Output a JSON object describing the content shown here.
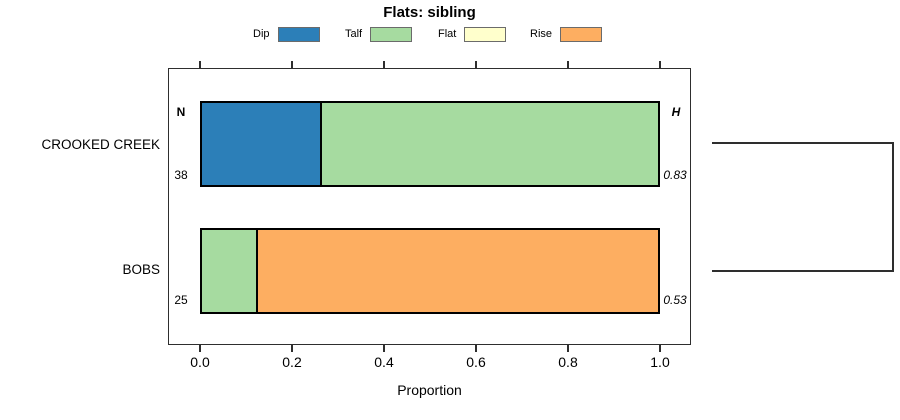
{
  "chart_data": {
    "type": "bar",
    "orientation": "horizontal",
    "stacked": true,
    "title": "Flats: sibling",
    "xlabel": "Proportion",
    "xlim": [
      0,
      1
    ],
    "xticks": [
      0,
      0.2,
      0.4,
      0.6,
      0.8,
      1
    ],
    "xtick_labels": [
      "0.0",
      "0.2",
      "0.4",
      "0.6",
      "0.8",
      "1.0"
    ],
    "grid": false,
    "legend_position": "top",
    "categories": [
      "Dip",
      "Talf",
      "Flat",
      "Rise"
    ],
    "colors": {
      "Dip": "#2C7FB8",
      "Talf": "#A6DBA0",
      "Flat": "#FFFFCC",
      "Rise": "#FDAE61"
    },
    "column_headers": {
      "n": "N",
      "h": "H"
    },
    "rows": [
      {
        "label": "CROOKED CREEK",
        "n": 38,
        "h": 0.83,
        "values": {
          "Dip": 0.26,
          "Talf": 0.74,
          "Flat": 0,
          "Rise": 0
        }
      },
      {
        "label": "BOBS",
        "n": 25,
        "h": 0.53,
        "values": {
          "Dip": 0,
          "Talf": 0.12,
          "Flat": 0,
          "Rise": 0.88
        }
      }
    ],
    "cluster_bracket": {
      "joined_rows": [
        "CROOKED CREEK",
        "BOBS"
      ]
    }
  }
}
